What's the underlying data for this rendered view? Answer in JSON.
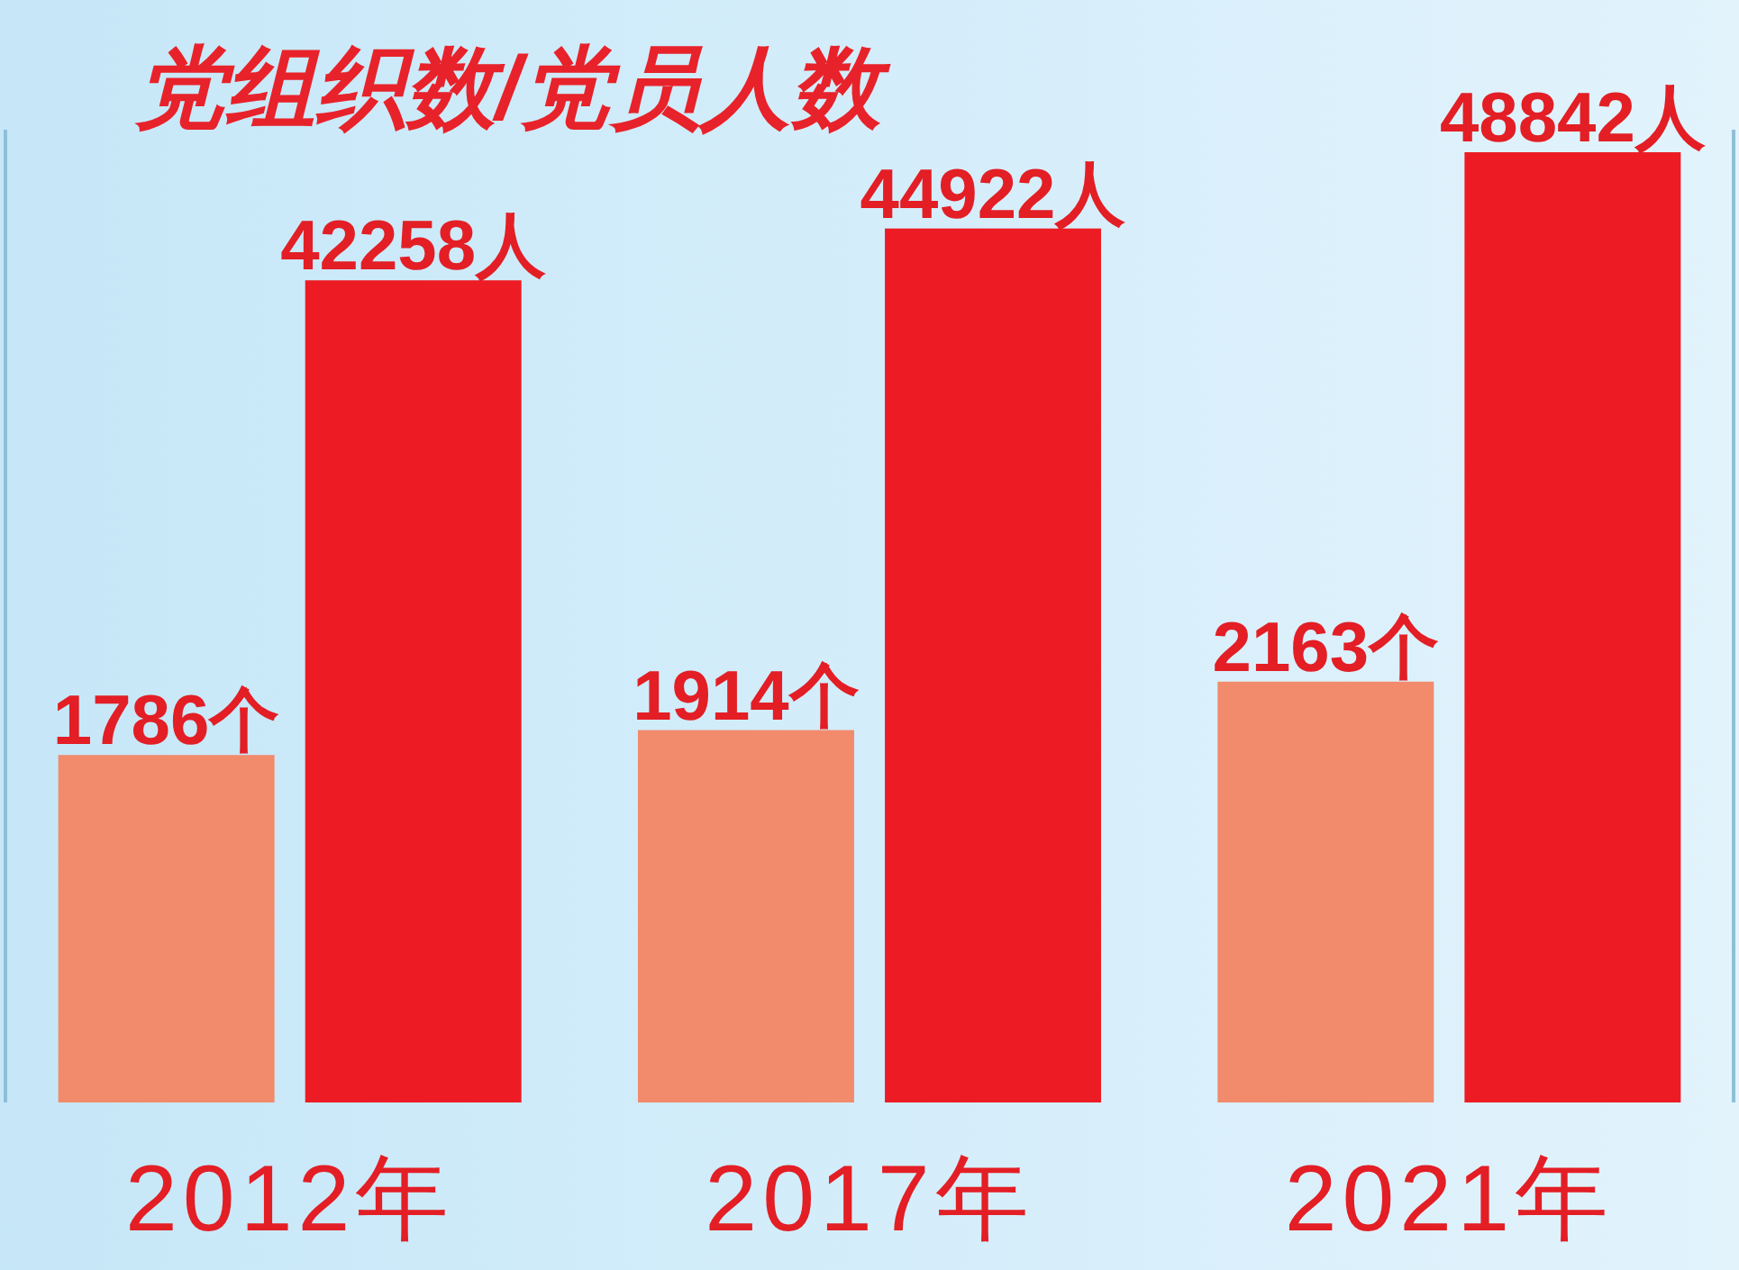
{
  "chart_data": {
    "type": "bar",
    "title": "党组织数/党员人数",
    "categories": [
      "2012年",
      "2017年",
      "2021年"
    ],
    "series": [
      {
        "color": "#f28a6c",
        "values": [
          1786,
          1914,
          2163
        ],
        "value_labels": [
          "1786个",
          "1914个",
          "2163个"
        ],
        "axis": "y"
      },
      {
        "color": "#ed1c24",
        "values": [
          42258,
          44922,
          48842
        ],
        "value_labels": [
          "42258人",
          "44922人",
          "48842人"
        ],
        "axis": "y2"
      }
    ],
    "ylim": [
      0,
      5000
    ],
    "y2lim": [
      0,
      50000
    ],
    "tick_labels": "x"
  }
}
